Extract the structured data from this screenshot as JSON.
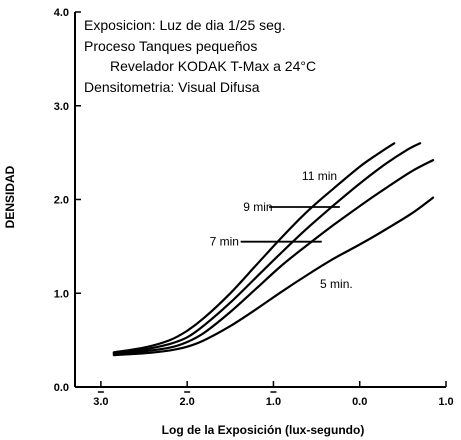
{
  "chart_data": {
    "type": "line",
    "title": "",
    "xlabel": "Log de la Exposición (lux-segundo)",
    "ylabel": "DENSIDAD",
    "xlim": [
      -3.3,
      1.0
    ],
    "ylim": [
      0.0,
      4.0
    ],
    "x_ticks": [
      {
        "value": -3.0,
        "label": "3.0",
        "bar": true
      },
      {
        "value": -2.0,
        "label": "2.0",
        "bar": true
      },
      {
        "value": -1.0,
        "label": "1.0",
        "bar": true
      },
      {
        "value": 0.0,
        "label": "0.0",
        "bar": false
      },
      {
        "value": 1.0,
        "label": "1.0",
        "bar": false
      }
    ],
    "y_ticks": [
      {
        "value": 0.0,
        "label": "0.0"
      },
      {
        "value": 1.0,
        "label": "1.0"
      },
      {
        "value": 2.0,
        "label": "2.0"
      },
      {
        "value": 3.0,
        "label": "3.0"
      },
      {
        "value": 4.0,
        "label": "4.0"
      }
    ],
    "info_lines": [
      "Exposicion: Luz de dia 1/25 seg.",
      "Proceso Tanques pequeños",
      "Revelador KODAK T-Max a 24°C",
      "Densitometria: Visual Difusa"
    ],
    "grid": false,
    "series": [
      {
        "name": "5 min.",
        "x": [
          -2.85,
          -2.5,
          -2.2,
          -2.0,
          -1.8,
          -1.5,
          -1.2,
          -0.9,
          -0.6,
          -0.3,
          0.0,
          0.3,
          0.6,
          0.85
        ],
        "y": [
          0.34,
          0.36,
          0.39,
          0.43,
          0.5,
          0.65,
          0.83,
          1.02,
          1.2,
          1.37,
          1.52,
          1.68,
          1.85,
          2.02
        ]
      },
      {
        "name": "7 min",
        "x": [
          -2.85,
          -2.5,
          -2.2,
          -2.0,
          -1.8,
          -1.5,
          -1.2,
          -0.9,
          -0.6,
          -0.3,
          0.0,
          0.3,
          0.6,
          0.85
        ],
        "y": [
          0.35,
          0.38,
          0.42,
          0.48,
          0.58,
          0.8,
          1.05,
          1.3,
          1.52,
          1.73,
          1.93,
          2.12,
          2.3,
          2.42
        ]
      },
      {
        "name": "9 min",
        "x": [
          -2.85,
          -2.5,
          -2.2,
          -2.0,
          -1.8,
          -1.5,
          -1.2,
          -0.9,
          -0.6,
          -0.3,
          0.0,
          0.3,
          0.55,
          0.7
        ],
        "y": [
          0.36,
          0.4,
          0.46,
          0.53,
          0.66,
          0.9,
          1.17,
          1.44,
          1.7,
          1.94,
          2.17,
          2.38,
          2.53,
          2.6
        ]
      },
      {
        "name": "11 min",
        "x": [
          -2.85,
          -2.5,
          -2.2,
          -2.0,
          -1.8,
          -1.5,
          -1.2,
          -0.9,
          -0.6,
          -0.3,
          0.0,
          0.2,
          0.4
        ],
        "y": [
          0.37,
          0.42,
          0.5,
          0.6,
          0.74,
          1.0,
          1.3,
          1.6,
          1.88,
          2.12,
          2.35,
          2.48,
          2.6
        ]
      }
    ],
    "curve_labels": [
      {
        "series": "11 min",
        "text": "11 min",
        "x": -0.67,
        "y": 2.25,
        "leader": null
      },
      {
        "series": "9 min",
        "text": "9 min",
        "x": -1.35,
        "y": 1.92,
        "leader": [
          -1.05,
          -0.23
        ]
      },
      {
        "series": "7 min",
        "text": "7 min",
        "x": -1.74,
        "y": 1.55,
        "leader": [
          -1.38,
          -0.44
        ]
      },
      {
        "series": "5 min.",
        "text": "5 min.",
        "x": -0.46,
        "y": 1.1,
        "leader": null
      }
    ]
  }
}
